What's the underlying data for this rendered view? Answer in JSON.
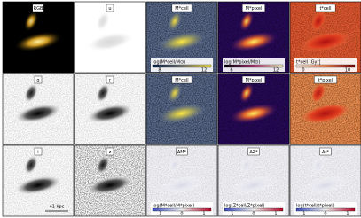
{
  "panels": [
    {
      "label": "RGB",
      "style": "rgb"
    },
    {
      "label": "u",
      "style": "u"
    },
    {
      "label": "M*cell",
      "style": "mass",
      "cbar_label": "log(M*cell/M⊙)",
      "cbar_ticks": [
        "8",
        "12"
      ]
    },
    {
      "label": "M*pixel",
      "style": "plasma",
      "cbar_label": "log(M*pixel/M⊙)",
      "cbar_ticks": [
        "6",
        "12"
      ]
    },
    {
      "label": "t*cell",
      "style": "age",
      "cbar_label": "t*cell [Gyr]",
      "cbar_ticks": [
        "0",
        "10"
      ]
    },
    {
      "label": "g",
      "style": "gray"
    },
    {
      "label": "r",
      "style": "gray"
    },
    {
      "label": "M*cell",
      "style": "mass"
    },
    {
      "label": "M*pixel",
      "style": "plasma"
    },
    {
      "label": "t*pixel",
      "style": "age2"
    },
    {
      "label": "i",
      "style": "gray"
    },
    {
      "label": "z",
      "style": "noisy"
    },
    {
      "label": "ΔM*",
      "style": "diff",
      "cbar_label": "log(M*cell/M*pixel)",
      "cbar_ticks": [
        "-1",
        "0",
        "1"
      ]
    },
    {
      "label": "ΔZ*",
      "style": "diff",
      "cbar_label": "log(Z*cell/Z*pixel)",
      "cbar_ticks": [
        "-1",
        "0",
        "1"
      ]
    },
    {
      "label": "Δt*",
      "style": "diff",
      "cbar_label": "log(t*cell/t*pixel)",
      "cbar_ticks": [
        "-1",
        "0",
        "1"
      ]
    }
  ],
  "scale_bar": "41 kpc"
}
